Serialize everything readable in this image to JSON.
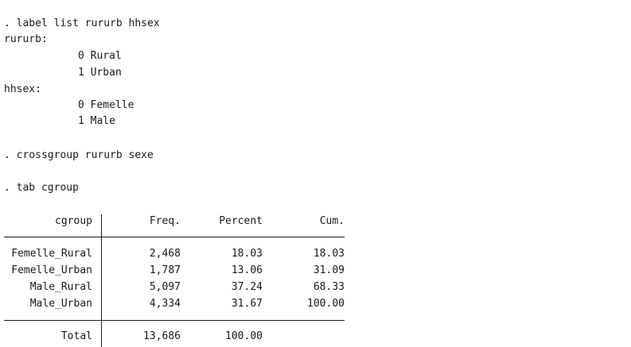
{
  "commands": {
    "label_list": ". label list rururb hhsex",
    "crossgroup": ". crossgroup rururb sexe",
    "tab": ". tab cgroup"
  },
  "labels": {
    "rururb": {
      "name": "rururb:",
      "items": [
        "0 Rural",
        "1 Urban"
      ]
    },
    "hhsex": {
      "name": "hhsex:",
      "items": [
        "0 Femelle",
        "1 Male"
      ]
    }
  },
  "table": {
    "headers": [
      "cgroup",
      "Freq.",
      "Percent",
      "Cum."
    ],
    "rows": [
      [
        "Femelle_Rural",
        "2,468",
        "18.03",
        "18.03"
      ],
      [
        "Femelle_Urban",
        "1,787",
        "13.06",
        "31.09"
      ],
      [
        "Male_Rural",
        "5,097",
        "37.24",
        "68.33"
      ],
      [
        "Male_Urban",
        "4,334",
        "31.67",
        "100.00"
      ]
    ],
    "total": [
      "Total",
      "13,686",
      "100.00"
    ]
  }
}
